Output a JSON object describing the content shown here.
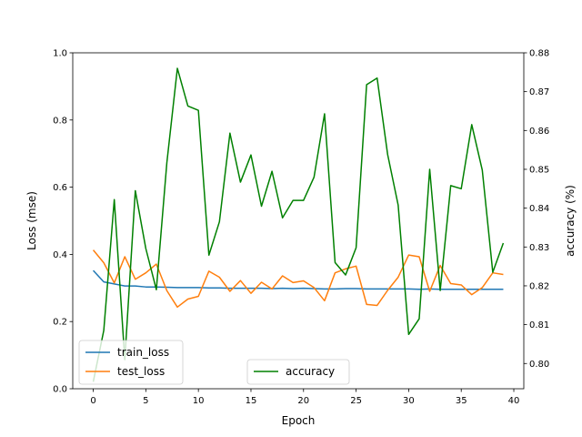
{
  "chart_data": {
    "type": "line",
    "xlabel": "Epoch",
    "ylabel_left": "Loss (mse)",
    "ylabel_right": "accuracy (%)",
    "xlim": [
      -1.95,
      40.95
    ],
    "ylim_left": [
      0.0,
      1.0
    ],
    "ylim_right": [
      0.7935,
      0.88
    ],
    "xticks": [
      0,
      5,
      10,
      15,
      20,
      25,
      30,
      35,
      40
    ],
    "yticks_left": [
      0.0,
      0.2,
      0.4,
      0.6,
      0.8,
      1.0
    ],
    "yticks_right": [
      0.8,
      0.81,
      0.82,
      0.83,
      0.84,
      0.85,
      0.86,
      0.87,
      0.88
    ],
    "xtick_labels": [
      "0",
      "5",
      "10",
      "15",
      "20",
      "25",
      "30",
      "35",
      "40"
    ],
    "yticks_left_labels": [
      "0.0",
      "0.2",
      "0.4",
      "0.6",
      "0.8",
      "1.0"
    ],
    "yticks_right_labels": [
      "0.80",
      "0.81",
      "0.82",
      "0.83",
      "0.84",
      "0.85",
      "0.86",
      "0.87",
      "0.88"
    ],
    "grid": false,
    "x": [
      0,
      1,
      2,
      3,
      4,
      5,
      6,
      7,
      8,
      9,
      10,
      11,
      12,
      13,
      14,
      15,
      16,
      17,
      18,
      19,
      20,
      21,
      22,
      23,
      24,
      25,
      26,
      27,
      28,
      29,
      30,
      31,
      32,
      33,
      34,
      35,
      36,
      37,
      38,
      39
    ],
    "series": [
      {
        "name": "train_loss",
        "axis": "left",
        "color": "#1f77b4",
        "values": [
          0.352,
          0.318,
          0.312,
          0.306,
          0.306,
          0.303,
          0.303,
          0.302,
          0.301,
          0.301,
          0.301,
          0.3,
          0.3,
          0.299,
          0.299,
          0.299,
          0.299,
          0.298,
          0.299,
          0.298,
          0.299,
          0.298,
          0.297,
          0.297,
          0.298,
          0.298,
          0.297,
          0.297,
          0.297,
          0.297,
          0.297,
          0.296,
          0.297,
          0.296,
          0.296,
          0.296,
          0.296,
          0.296,
          0.296,
          0.296
        ]
      },
      {
        "name": "test_loss",
        "axis": "left",
        "color": "#ff7f0e",
        "values": [
          0.413,
          0.375,
          0.315,
          0.393,
          0.326,
          0.345,
          0.371,
          0.292,
          0.243,
          0.267,
          0.275,
          0.35,
          0.332,
          0.29,
          0.322,
          0.284,
          0.317,
          0.297,
          0.336,
          0.316,
          0.321,
          0.301,
          0.262,
          0.345,
          0.357,
          0.365,
          0.251,
          0.248,
          0.293,
          0.332,
          0.398,
          0.393,
          0.29,
          0.367,
          0.313,
          0.309,
          0.28,
          0.301,
          0.345,
          0.34
        ]
      },
      {
        "name": "accuracy",
        "axis": "right",
        "color": "#008000",
        "values": [
          0.7953,
          0.8085,
          0.8422,
          0.801,
          0.8445,
          0.8296,
          0.819,
          0.8517,
          0.876,
          0.8663,
          0.8652,
          0.8279,
          0.8365,
          0.8593,
          0.8467,
          0.8537,
          0.8405,
          0.8495,
          0.8375,
          0.842,
          0.842,
          0.848,
          0.8643,
          0.826,
          0.8228,
          0.8298,
          0.8718,
          0.8735,
          0.8538,
          0.8408,
          0.8075,
          0.8115,
          0.85,
          0.8188,
          0.8458,
          0.845,
          0.8615,
          0.8498,
          0.8235,
          0.831
        ]
      }
    ],
    "legends": {
      "left": {
        "placement": "lower-left",
        "entries": [
          "train_loss",
          "test_loss"
        ]
      },
      "right": {
        "placement": "lower-center",
        "entries": [
          "accuracy"
        ]
      }
    }
  }
}
